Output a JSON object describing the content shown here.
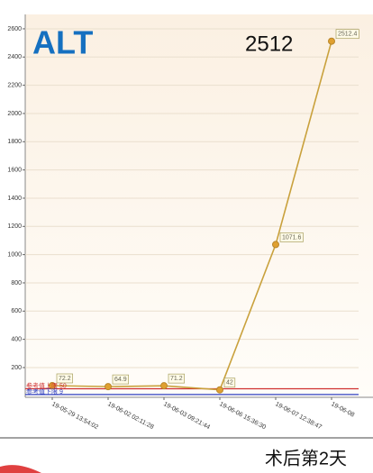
{
  "chart_data": {
    "type": "line",
    "title": "ALT",
    "annotation": "2512",
    "categories": [
      "19-05-29 13:54:02",
      "19-06-02 02:11:28",
      "19-06-03 09:21:44",
      "19-06-06 15:36:30",
      "19-06-07 12:38:47",
      "19-06-08"
    ],
    "series": [
      {
        "name": "ALT",
        "color": "#c9a13c",
        "values": [
          72.2,
          64.9,
          71.2,
          42,
          1071.6,
          2512.4
        ]
      }
    ],
    "reference_lines": [
      {
        "label": "参考值上限",
        "value": 50,
        "color": "#d03030"
      },
      {
        "label": "参考值下限",
        "value": 9,
        "color": "#3040c0"
      }
    ],
    "ylim": [
      0,
      2700
    ],
    "yticks": [
      200,
      400,
      600,
      800,
      1000,
      1200,
      1400,
      1600,
      1800,
      2000,
      2200,
      2400,
      2600
    ],
    "grid": true
  },
  "footer": "术后第2天"
}
